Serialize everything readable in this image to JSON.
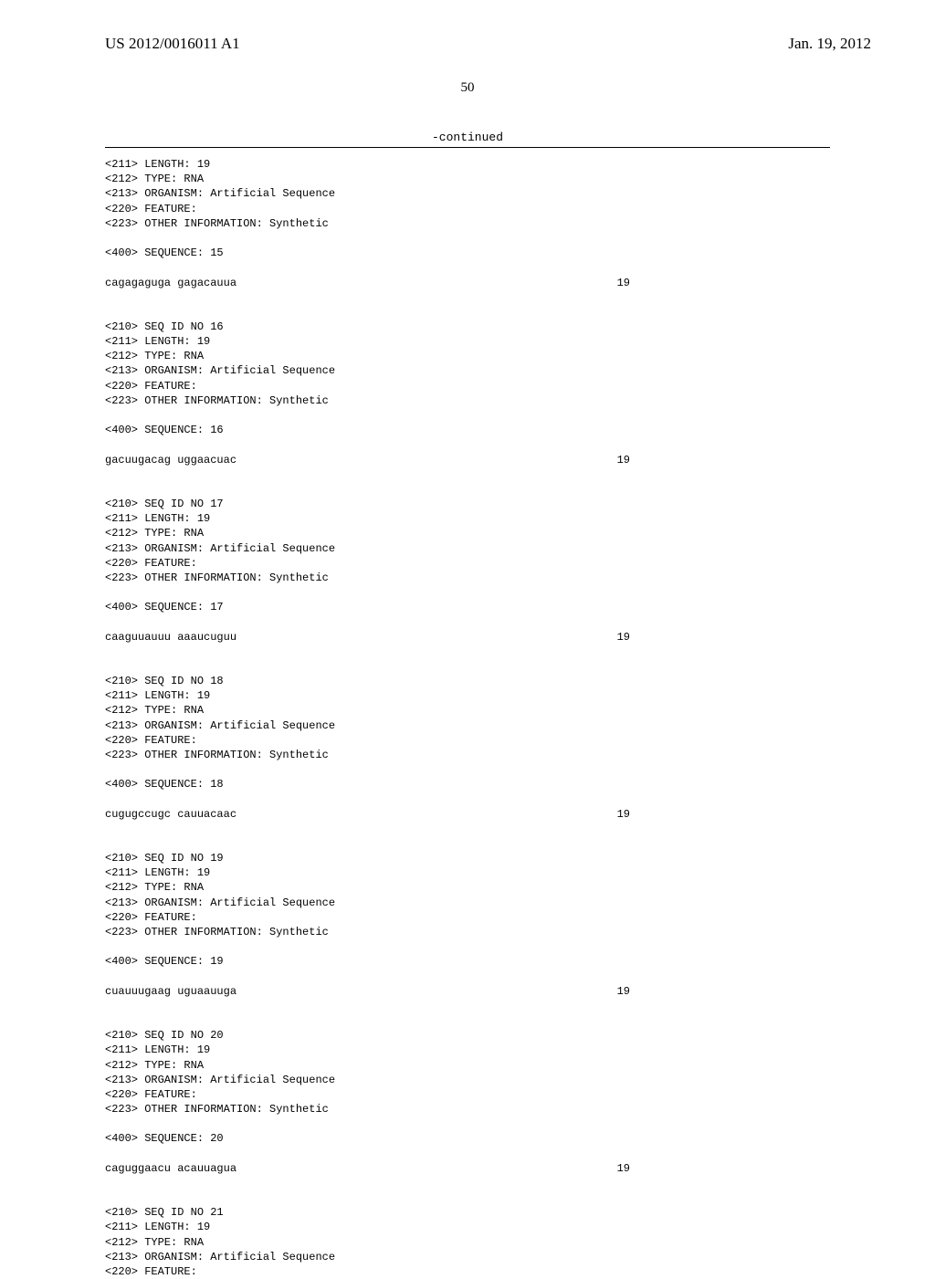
{
  "header": {
    "pub_number": "US 2012/0016011 A1",
    "pub_date": "Jan. 19, 2012"
  },
  "page_number": "50",
  "continued_label": "-continued",
  "blocks": [
    {
      "meta": [
        "<211> LENGTH: 19",
        "<212> TYPE: RNA",
        "<213> ORGANISM: Artificial Sequence",
        "<220> FEATURE:",
        "<223> OTHER INFORMATION: Synthetic"
      ],
      "seq_header": "<400> SEQUENCE: 15",
      "sequence": "cagagaguga gagacauua",
      "length": "19"
    },
    {
      "meta": [
        "<210> SEQ ID NO 16",
        "<211> LENGTH: 19",
        "<212> TYPE: RNA",
        "<213> ORGANISM: Artificial Sequence",
        "<220> FEATURE:",
        "<223> OTHER INFORMATION: Synthetic"
      ],
      "seq_header": "<400> SEQUENCE: 16",
      "sequence": "gacuugacag uggaacuac",
      "length": "19"
    },
    {
      "meta": [
        "<210> SEQ ID NO 17",
        "<211> LENGTH: 19",
        "<212> TYPE: RNA",
        "<213> ORGANISM: Artificial Sequence",
        "<220> FEATURE:",
        "<223> OTHER INFORMATION: Synthetic"
      ],
      "seq_header": "<400> SEQUENCE: 17",
      "sequence": "caaguuauuu aaaucuguu",
      "length": "19"
    },
    {
      "meta": [
        "<210> SEQ ID NO 18",
        "<211> LENGTH: 19",
        "<212> TYPE: RNA",
        "<213> ORGANISM: Artificial Sequence",
        "<220> FEATURE:",
        "<223> OTHER INFORMATION: Synthetic"
      ],
      "seq_header": "<400> SEQUENCE: 18",
      "sequence": "cugugccugc cauuacaac",
      "length": "19"
    },
    {
      "meta": [
        "<210> SEQ ID NO 19",
        "<211> LENGTH: 19",
        "<212> TYPE: RNA",
        "<213> ORGANISM: Artificial Sequence",
        "<220> FEATURE:",
        "<223> OTHER INFORMATION: Synthetic"
      ],
      "seq_header": "<400> SEQUENCE: 19",
      "sequence": "cuauuugaag uguaauuga",
      "length": "19"
    },
    {
      "meta": [
        "<210> SEQ ID NO 20",
        "<211> LENGTH: 19",
        "<212> TYPE: RNA",
        "<213> ORGANISM: Artificial Sequence",
        "<220> FEATURE:",
        "<223> OTHER INFORMATION: Synthetic"
      ],
      "seq_header": "<400> SEQUENCE: 20",
      "sequence": "caguggaacu acauuagua",
      "length": "19"
    },
    {
      "meta": [
        "<210> SEQ ID NO 21",
        "<211> LENGTH: 19",
        "<212> TYPE: RNA",
        "<213> ORGANISM: Artificial Sequence",
        "<220> FEATURE:"
      ],
      "seq_header": null,
      "sequence": null,
      "length": null
    }
  ]
}
